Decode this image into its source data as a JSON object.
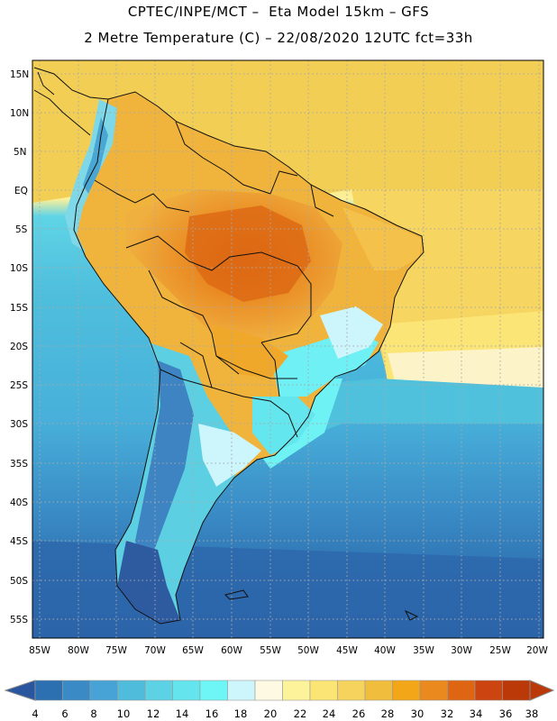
{
  "header": {
    "line1": "CPTEC/INPE/MCT –  Eta Model 15km – GFS",
    "line2": "2 Metre Temperature (C) – 22/08/2020 12UTC fct=33h"
  },
  "map": {
    "lat_labels": [
      "15N",
      "10N",
      "5N",
      "EQ",
      "5S",
      "10S",
      "15S",
      "20S",
      "25S",
      "30S",
      "35S",
      "40S",
      "45S",
      "50S",
      "55S"
    ],
    "lon_labels": [
      "85W",
      "80W",
      "75W",
      "70W",
      "65W",
      "60W",
      "55W",
      "50W",
      "45W",
      "40W",
      "35W",
      "30W",
      "25W",
      "20W"
    ]
  },
  "colorbar": {
    "labels": [
      "4",
      "6",
      "8",
      "10",
      "12",
      "14",
      "16",
      "18",
      "20",
      "22",
      "24",
      "26",
      "28",
      "30",
      "32",
      "34",
      "36",
      "38"
    ],
    "colors": [
      "#2a56a0",
      "#2d70b2",
      "#3a8ac6",
      "#47a2d6",
      "#4fbcdc",
      "#5cd2e4",
      "#64e4ec",
      "#6ef6f6",
      "#cdf6fc",
      "#fdf9e2",
      "#fdf39a",
      "#fbe574",
      "#f6d35c",
      "#f0bd3c",
      "#f2a618",
      "#e9891e",
      "#de6612",
      "#cc4410",
      "#bb3808",
      "#bb3808"
    ]
  }
}
